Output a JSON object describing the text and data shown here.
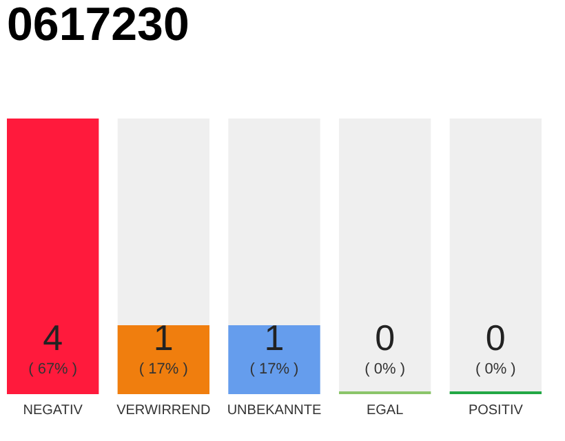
{
  "chart_data": {
    "type": "bar",
    "title": "0617230",
    "categories": [
      "NEGATIV",
      "VERWIRREND",
      "UNBEKANNTE",
      "EGAL",
      "POSITIV"
    ],
    "values": [
      4,
      1,
      1,
      0,
      0
    ],
    "colors": [
      "#ff1a3c",
      "#f07e0e",
      "#659ded",
      "#8bc56a",
      "#22a845"
    ],
    "data_labels": true,
    "annotations": [
      "( 67% )",
      "( 17% )",
      "( 17% )",
      "( 0% )",
      "( 0% )"
    ]
  }
}
